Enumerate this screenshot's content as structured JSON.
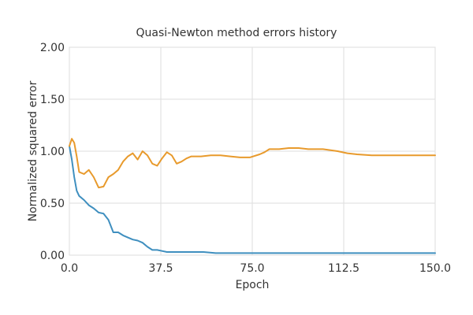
{
  "chart_data": {
    "type": "line",
    "title": "Quasi-Newton method errors history",
    "xlabel": "Epoch",
    "ylabel": "Normalized squared error",
    "xlim": [
      0,
      150
    ],
    "ylim": [
      0,
      2
    ],
    "x_ticks": [
      "0.0",
      "37.5",
      "75.0",
      "112.5",
      "150.0"
    ],
    "y_ticks": [
      "0.00",
      "0.50",
      "1.00",
      "1.50",
      "2.00"
    ],
    "grid": true,
    "legend": "none",
    "series": [
      {
        "color": "#3f8fbf",
        "x": [
          0,
          1,
          2,
          3,
          4,
          6,
          8,
          10,
          12,
          14,
          16,
          17,
          18,
          20,
          22,
          24,
          26,
          28,
          30,
          32,
          34,
          36,
          38,
          40,
          45,
          50,
          55,
          60,
          70,
          80,
          90,
          100,
          110,
          120,
          130,
          140,
          150
        ],
        "values": [
          1.05,
          0.92,
          0.75,
          0.62,
          0.57,
          0.53,
          0.48,
          0.45,
          0.41,
          0.4,
          0.34,
          0.28,
          0.22,
          0.22,
          0.19,
          0.17,
          0.15,
          0.14,
          0.12,
          0.08,
          0.05,
          0.05,
          0.04,
          0.03,
          0.03,
          0.03,
          0.03,
          0.02,
          0.02,
          0.02,
          0.02,
          0.02,
          0.02,
          0.02,
          0.02,
          0.02,
          0.02
        ]
      },
      {
        "color": "#e89a2c",
        "x": [
          0,
          1,
          2,
          3,
          4,
          6,
          8,
          10,
          12,
          14,
          16,
          18,
          20,
          22,
          24,
          26,
          28,
          30,
          32,
          34,
          36,
          38,
          40,
          42,
          44,
          46,
          48,
          50,
          54,
          58,
          62,
          66,
          70,
          74,
          78,
          80,
          82,
          86,
          90,
          94,
          98,
          104,
          110,
          114,
          118,
          124,
          130,
          140,
          150
        ],
        "values": [
          1.05,
          1.12,
          1.08,
          0.95,
          0.8,
          0.78,
          0.82,
          0.75,
          0.65,
          0.66,
          0.75,
          0.78,
          0.82,
          0.9,
          0.95,
          0.98,
          0.92,
          1.0,
          0.96,
          0.88,
          0.86,
          0.93,
          0.99,
          0.96,
          0.88,
          0.9,
          0.93,
          0.95,
          0.95,
          0.96,
          0.96,
          0.95,
          0.94,
          0.94,
          0.97,
          0.99,
          1.02,
          1.02,
          1.03,
          1.03,
          1.02,
          1.02,
          1.0,
          0.98,
          0.97,
          0.96,
          0.96,
          0.96,
          0.96
        ]
      }
    ]
  }
}
